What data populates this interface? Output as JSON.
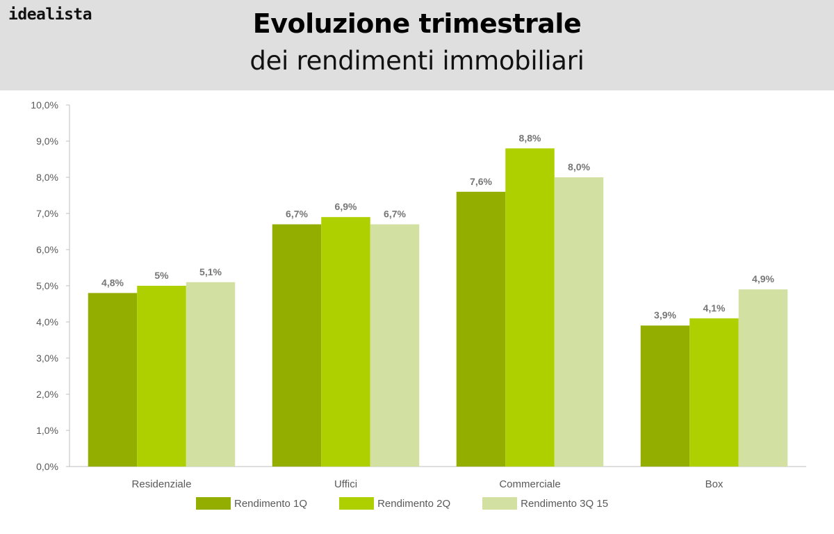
{
  "header": {
    "logo_text": "idealista",
    "title": "Evoluzione trimestrale",
    "subtitle": "dei rendimenti immobiliari"
  },
  "colors": {
    "header_bg": "#dfdfdf",
    "series_1": "#94ae00",
    "series_2": "#aed000",
    "series_3": "#d2e1a2",
    "axis_text": "#595959",
    "data_label": "#767676"
  },
  "chart_data": {
    "type": "bar",
    "categories": [
      "Residenziale",
      "Uffici",
      "Commerciale",
      "Box"
    ],
    "series": [
      {
        "name": "Rendimento 1Q",
        "values": [
          4.8,
          6.7,
          7.6,
          3.9
        ],
        "labels": [
          "4,8%",
          "6,7%",
          "7,6%",
          "3,9%"
        ],
        "color": "#94ae00"
      },
      {
        "name": "Rendimento 2Q",
        "values": [
          5.0,
          6.9,
          8.8,
          4.1
        ],
        "labels": [
          "5%",
          "6,9%",
          "8,8%",
          "4,1%"
        ],
        "color": "#aed000"
      },
      {
        "name": "Rendimento 3Q 15",
        "values": [
          5.1,
          6.7,
          8.0,
          4.9
        ],
        "labels": [
          "5,1%",
          "6,7%",
          "8,0%",
          "4,9%"
        ],
        "color": "#d2e1a2"
      }
    ],
    "ylim": [
      0,
      10
    ],
    "yticks": [
      "0,0%",
      "1,0%",
      "2,0%",
      "3,0%",
      "4,0%",
      "5,0%",
      "6,0%",
      "7,0%",
      "8,0%",
      "9,0%",
      "10,0%"
    ],
    "grid": false,
    "legend": "bottom"
  }
}
